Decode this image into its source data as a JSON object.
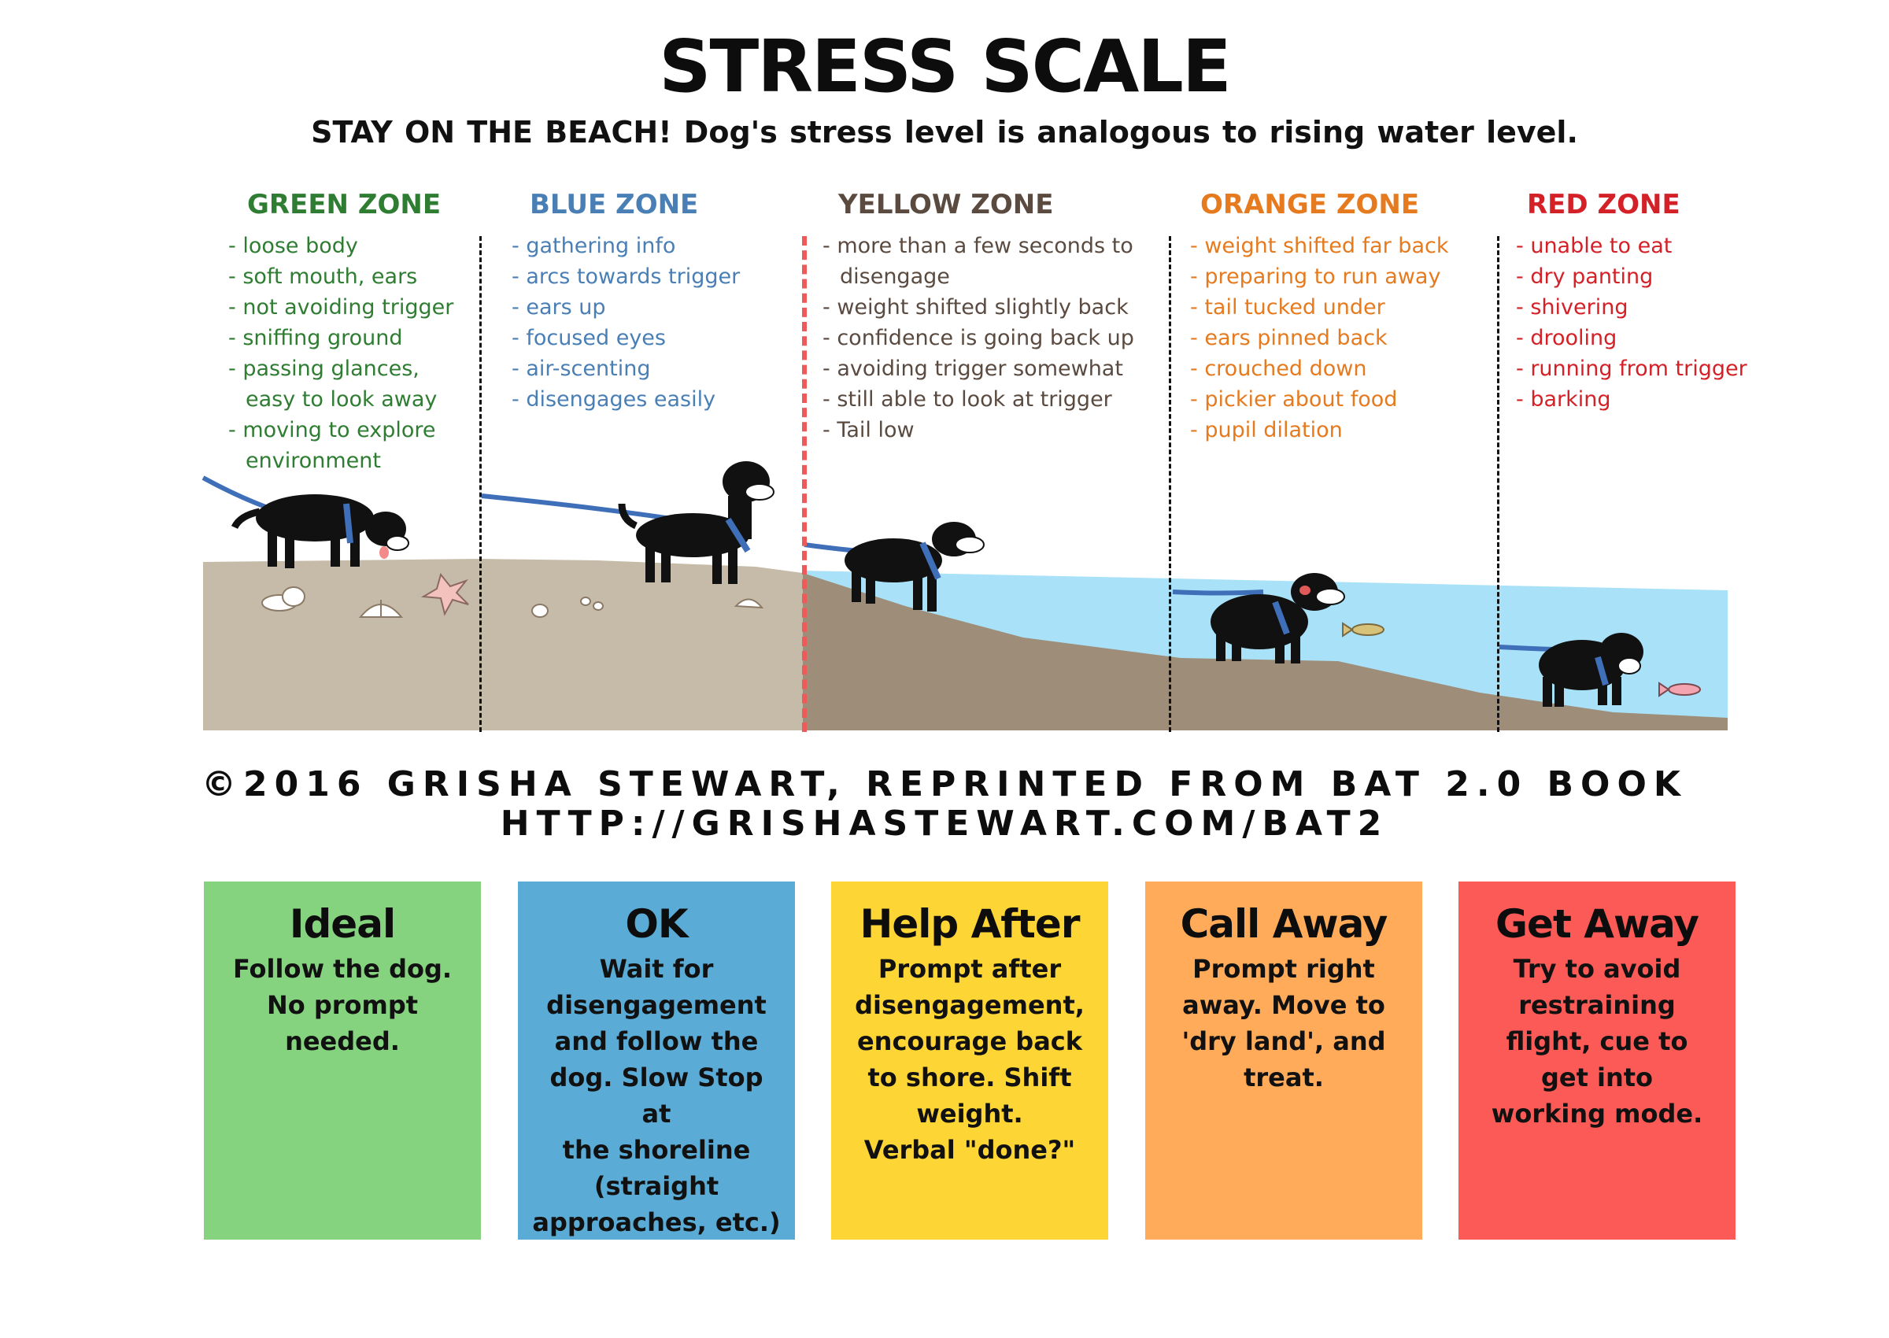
{
  "title": "STRESS SCALE",
  "subtitle": "STAY ON THE BEACH!  Dog's stress level is analogous to rising water level.",
  "zones": [
    {
      "name": "GREEN ZONE",
      "color": "#2f7d32",
      "items": [
        "loose body",
        "soft mouth, ears",
        "not avoiding trigger",
        "sniffing ground",
        "passing glances, easy to look away",
        "moving to explore environment"
      ]
    },
    {
      "name": "BLUE ZONE",
      "color": "#4a7fb5",
      "items": [
        "gathering info",
        "arcs towards trigger",
        "ears up",
        "focused eyes",
        "air-scenting",
        "disengages easily"
      ]
    },
    {
      "name": "YELLOW ZONE",
      "color": "#5a4a40",
      "items": [
        "more than a few seconds to disengage",
        "weight shifted slightly back",
        "confidence is going back up",
        "avoiding trigger somewhat",
        "still able to look at trigger",
        "Tail low"
      ]
    },
    {
      "name": "ORANGE ZONE",
      "color": "#e57a1e",
      "items": [
        "weight shifted far back",
        "preparing to run away",
        "tail tucked under",
        "ears pinned back",
        "crouched down",
        "pickier about food",
        "pupil dilation"
      ]
    },
    {
      "name": "RED ZONE",
      "color": "#d42027",
      "items": [
        "unable to eat",
        "dry panting",
        "shivering",
        "drooling",
        "running from trigger",
        "barking"
      ]
    }
  ],
  "credit_line1": "©2016  GRISHA STEWART, REPRINTED FROM BAT 2.0 BOOK",
  "credit_line2": "HTTP://GRISHASTEWART.COM/BAT2",
  "cards": [
    {
      "title": "Ideal",
      "text": "Follow the dog.\nNo prompt needed.",
      "color": "#85d37f"
    },
    {
      "title": "OK",
      "text": "Wait for\ndisengagement\nand follow the\ndog. Slow Stop at\nthe shoreline\n(straight\napproaches, etc.)",
      "color": "#5aacd6"
    },
    {
      "title": "Help After",
      "text": "Prompt after\ndisengagement,\nencourage back\nto shore. Shift\nweight.\nVerbal \"done?\"",
      "color": "#fdd535"
    },
    {
      "title": "Call Away",
      "text": "Prompt right\naway. Move to\n'dry land', and\ntreat.",
      "color": "#ffab5a"
    },
    {
      "title": "Get Away",
      "text": "Try to avoid\nrestraining\nflight, cue to\nget into\nworking mode.",
      "color": "#fc5a56"
    }
  ],
  "scene_colors": {
    "sand_light": "#c6bba8",
    "sand_dark": "#9e8e79",
    "water": "#a9e2f8",
    "leash": "#3f6fb8",
    "dog": "#111111"
  }
}
